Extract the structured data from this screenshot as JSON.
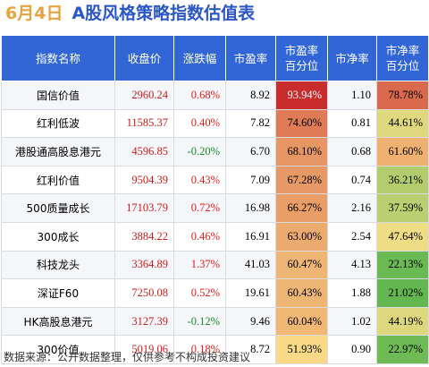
{
  "header": {
    "date": "6月4日",
    "title": "A股风格策略指数估值表"
  },
  "columns": [
    "指数名称",
    "收盘价",
    "涨跌幅",
    "市盈率",
    "市盈率\n百分位",
    "市净率",
    "市净率\n百分位"
  ],
  "rows": [
    {
      "name": "国信价值",
      "close": "2960.24",
      "chg": "0.68%",
      "pe": "8.92",
      "pe_pct": "93.94%",
      "pb": "1.10",
      "pb_pct": "78.78%"
    },
    {
      "name": "红利低波",
      "close": "11585.37",
      "chg": "0.40%",
      "pe": "7.82",
      "pe_pct": "74.60%",
      "pb": "0.81",
      "pb_pct": "44.61%"
    },
    {
      "name": "港股通高股息港元",
      "close": "4596.85",
      "chg": "-0.20%",
      "pe": "6.70",
      "pe_pct": "68.10%",
      "pb": "0.68",
      "pb_pct": "61.60%"
    },
    {
      "name": "红利价值",
      "close": "9504.39",
      "chg": "0.43%",
      "pe": "7.09",
      "pe_pct": "67.28%",
      "pb": "0.74",
      "pb_pct": "36.21%"
    },
    {
      "name": "500质量成长",
      "close": "17103.79",
      "chg": "0.72%",
      "pe": "16.98",
      "pe_pct": "66.27%",
      "pb": "2.16",
      "pb_pct": "37.59%"
    },
    {
      "name": "300成长",
      "close": "3884.22",
      "chg": "0.46%",
      "pe": "16.91",
      "pe_pct": "63.00%",
      "pb": "2.54",
      "pb_pct": "47.64%"
    },
    {
      "name": "科技龙头",
      "close": "3364.89",
      "chg": "1.37%",
      "pe": "41.03",
      "pe_pct": "60.47%",
      "pb": "4.13",
      "pb_pct": "22.13%"
    },
    {
      "name": "深证F60",
      "close": "7250.08",
      "chg": "0.52%",
      "pe": "19.61",
      "pe_pct": "60.43%",
      "pb": "1.88",
      "pb_pct": "21.02%"
    },
    {
      "name": "HK高股息港元",
      "close": "3127.39",
      "chg": "-0.12%",
      "pe": "9.46",
      "pe_pct": "60.04%",
      "pb": "1.02",
      "pb_pct": "44.19%"
    },
    {
      "name": "300价值",
      "close": "5019.06",
      "chg": "0.18%",
      "pe": "8.72",
      "pe_pct": "51.93%",
      "pb": "0.90",
      "pb_pct": "22.97%"
    }
  ],
  "colors": {
    "title_date": "#e8a33d",
    "title_main": "#2a56c6",
    "header_bg": "#3265d6",
    "up": "#e0201c",
    "down": "#1a8a2a",
    "heat_high": "#c8282a",
    "heat_mid": "#fbe08a",
    "heat_low": "#5fb64e"
  },
  "footer": "数据来源：公开数据整理，仅供参考不构成投资建议"
}
